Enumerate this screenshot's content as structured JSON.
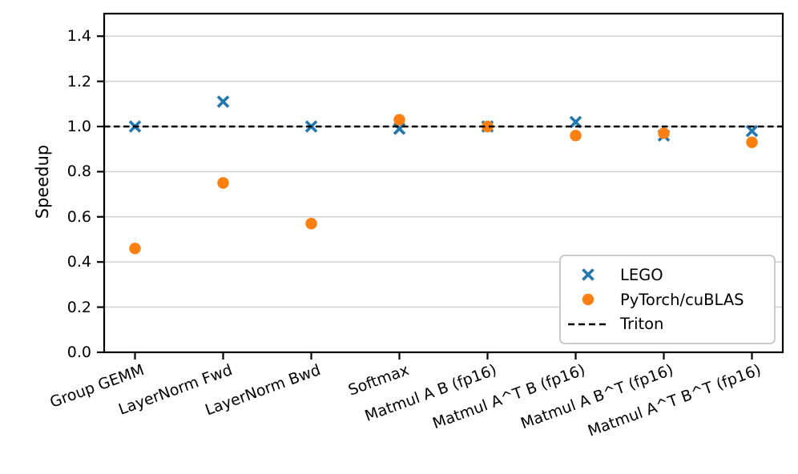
{
  "chart_data": {
    "type": "scatter",
    "title": "",
    "xlabel": "",
    "ylabel": "Speedup",
    "categories": [
      "Group GEMM",
      "LayerNorm Fwd",
      "LayerNorm Bwd",
      "Softmax",
      "Matmul A B (fp16)",
      "Matmul A^T B (fp16)",
      "Matmul A B^T (fp16)",
      "Matmul A^T B^T (fp16)"
    ],
    "series": [
      {
        "name": "LEGO",
        "marker": "x",
        "color": "#1f77b4",
        "values": [
          1.0,
          1.11,
          1.0,
          0.99,
          1.0,
          1.02,
          0.96,
          0.98
        ]
      },
      {
        "name": "PyTorch/cuBLAS",
        "marker": "circle",
        "color": "#ff7f0e",
        "values": [
          0.46,
          0.75,
          0.57,
          1.03,
          1.0,
          0.96,
          0.97,
          0.93
        ]
      }
    ],
    "reference_line": {
      "name": "Triton",
      "value": 1.0,
      "style": "dashed",
      "color": "#000000"
    },
    "ylim": [
      0,
      1.5
    ],
    "yticks": [
      0.0,
      0.2,
      0.4,
      0.6,
      0.8,
      1.0,
      1.2,
      1.4
    ],
    "ytick_labels": [
      "0.0",
      "0.2",
      "0.4",
      "0.6",
      "0.8",
      "1.0",
      "1.2",
      "1.4"
    ],
    "grid": true,
    "grid_color": "#cfcfcf",
    "axis_color": "#000000",
    "xtick_rotation_deg": 20,
    "legend_position": "lower right"
  }
}
